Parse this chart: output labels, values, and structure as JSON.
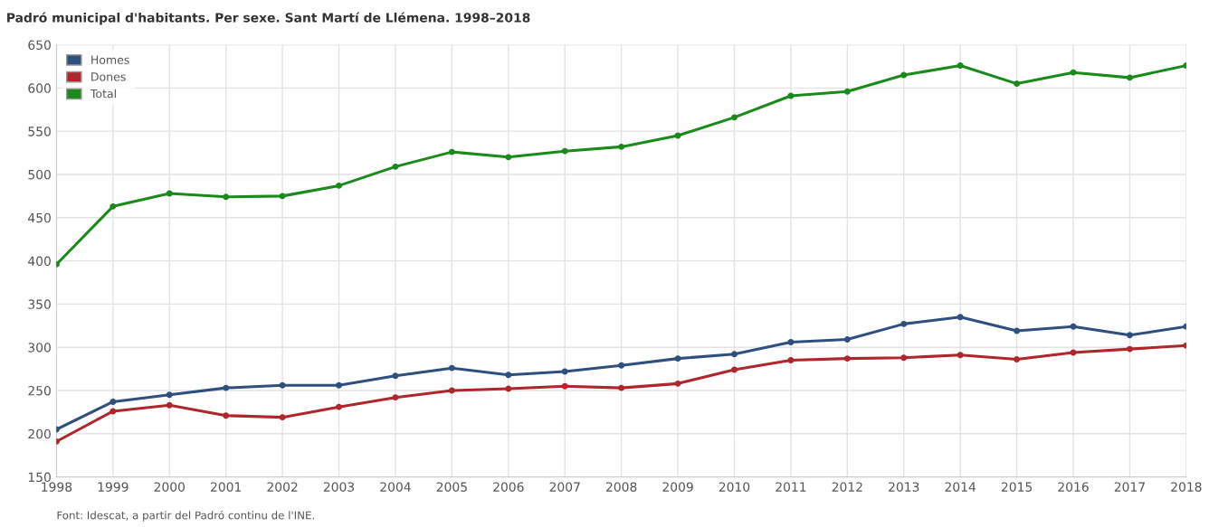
{
  "chart_data": {
    "type": "line",
    "title": "Padró municipal d'habitants. Per sexe. Sant Martí de Llémena. 1998–2018",
    "annotations": [
      "Font: Idescat, a partir del Padró continu de l'INE."
    ],
    "x": [
      1998,
      1999,
      2000,
      2001,
      2002,
      2003,
      2004,
      2005,
      2006,
      2007,
      2008,
      2009,
      2010,
      2011,
      2012,
      2013,
      2014,
      2015,
      2016,
      2017,
      2018
    ],
    "series": [
      {
        "name": "Homes",
        "color": "#2f4f7f",
        "values": [
          205,
          237,
          245,
          253,
          256,
          256,
          267,
          276,
          268,
          272,
          279,
          287,
          292,
          306,
          309,
          327,
          335,
          319,
          324,
          314,
          324
        ]
      },
      {
        "name": "Dones",
        "color": "#b0262d",
        "values": [
          191,
          226,
          233,
          221,
          219,
          231,
          242,
          250,
          252,
          255,
          253,
          258,
          274,
          285,
          287,
          288,
          291,
          286,
          294,
          298,
          302
        ]
      },
      {
        "name": "Total",
        "color": "#1a8a1a",
        "values": [
          396,
          463,
          478,
          474,
          475,
          487,
          509,
          526,
          520,
          527,
          532,
          545,
          566,
          591,
          596,
          615,
          626,
          605,
          618,
          612,
          626
        ]
      }
    ],
    "xlim": [
      1998,
      2018
    ],
    "xticks": [
      1998,
      1999,
      2000,
      2001,
      2002,
      2003,
      2004,
      2005,
      2006,
      2007,
      2008,
      2009,
      2010,
      2011,
      2012,
      2013,
      2014,
      2015,
      2016,
      2017,
      2018
    ],
    "ylim": [
      150,
      650
    ],
    "yticks": [
      150,
      200,
      250,
      300,
      350,
      400,
      450,
      500,
      550,
      600,
      650
    ],
    "grid": true,
    "legend": "top left",
    "marker": "circle",
    "line_style": "solid"
  }
}
